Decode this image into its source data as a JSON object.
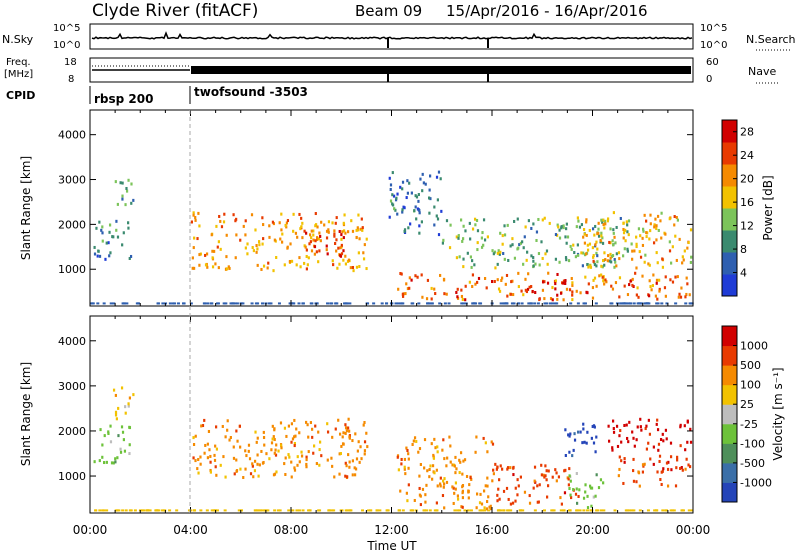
{
  "header": {
    "title": "Clyde River (fitACF)",
    "beam": "Beam 09",
    "date_range": "15/Apr/2016 - 16/Apr/2016"
  },
  "strip_labels": {
    "nsky": "N.Sky",
    "nsearch": "N.Search",
    "nsky_ticks": [
      "10^5",
      "10^0"
    ],
    "nsearch_ticks": [
      "10^5",
      "10^0"
    ],
    "freq": "Freq.",
    "freq_unit": "[MHz]",
    "freq_ticks": [
      "18",
      "8"
    ],
    "nave": "Nave",
    "nave_ticks": [
      "60",
      "0"
    ],
    "cpid": "CPID",
    "cpid_programs": [
      "rbsp 200",
      "twofsound -3503"
    ]
  },
  "chart_data": [
    {
      "type": "heatmap",
      "panel": "power",
      "xlabel": "",
      "ylabel": "Slant Range [km]",
      "x_ticks": [
        "00:00",
        "04:00",
        "08:00",
        "12:00",
        "16:00",
        "20:00",
        "00:00"
      ],
      "x_range_hours": [
        0,
        24
      ],
      "y_ticks": [
        "1000",
        "2000",
        "3000",
        "4000"
      ],
      "ylim": [
        180,
        4550
      ],
      "colorbar": {
        "label": "Power [dB]",
        "ticks": [
          "4",
          "8",
          "12",
          "16",
          "20",
          "24",
          "28"
        ],
        "range": [
          0,
          30
        ],
        "colors": [
          "#1f3cd6",
          "#2e5fb0",
          "#3a8a6f",
          "#7cc45a",
          "#f2c200",
          "#f58a00",
          "#e83a00",
          "#d10000"
        ]
      },
      "regions": [
        {
          "t": [
            0.1,
            1.6
          ],
          "r": [
            1250,
            2150
          ],
          "level": 8
        },
        {
          "t": [
            0.9,
            1.7
          ],
          "r": [
            2300,
            3050
          ],
          "level": 9
        },
        {
          "t": [
            4.0,
            11.0
          ],
          "r": [
            1000,
            2300
          ],
          "level": 20
        },
        {
          "t": [
            8.5,
            10.2
          ],
          "r": [
            1300,
            1900
          ],
          "level": 26
        },
        {
          "t": [
            12.2,
            23.9
          ],
          "r": [
            350,
            950
          ],
          "level": 22
        },
        {
          "t": [
            14.0,
            21.5
          ],
          "r": [
            1050,
            2200
          ],
          "level": 12
        },
        {
          "t": [
            19.5,
            23.9
          ],
          "r": [
            1050,
            2300
          ],
          "level": 18
        },
        {
          "t": [
            11.8,
            14.0
          ],
          "r": [
            1800,
            3200
          ],
          "level": 7
        },
        {
          "t": [
            17.0,
            19.0
          ],
          "r": [
            350,
            800
          ],
          "level": 27
        }
      ]
    },
    {
      "type": "heatmap",
      "panel": "velocity",
      "xlabel": "Time UT",
      "ylabel": "Slant Range [km]",
      "x_ticks": [
        "00:00",
        "04:00",
        "08:00",
        "12:00",
        "16:00",
        "20:00",
        "00:00"
      ],
      "x_range_hours": [
        0,
        24
      ],
      "y_ticks": [
        "1000",
        "2000",
        "3000",
        "4000"
      ],
      "ylim": [
        180,
        4550
      ],
      "colorbar": {
        "label": "Velocity [m s⁻¹]",
        "ticks": [
          "1000",
          "500",
          "100",
          "25",
          "-25",
          "-100",
          "-500",
          "-1000"
        ],
        "colors": [
          "#2444b8",
          "#3a6fa8",
          "#4e8f5a",
          "#6dc23a",
          "#bdbdbd",
          "#f2c200",
          "#f58a00",
          "#e83a00",
          "#d10000"
        ]
      },
      "regions": [
        {
          "t": [
            0.1,
            1.6
          ],
          "r": [
            1300,
            2150
          ],
          "level": 3
        },
        {
          "t": [
            0.9,
            1.7
          ],
          "r": [
            2300,
            3050
          ],
          "level": 5
        },
        {
          "t": [
            4.0,
            11.0
          ],
          "r": [
            1000,
            2300
          ],
          "level": 6
        },
        {
          "t": [
            12.2,
            16.0
          ],
          "r": [
            300,
            1900
          ],
          "level": 6
        },
        {
          "t": [
            16.0,
            19.5
          ],
          "r": [
            400,
            1300
          ],
          "level": 7
        },
        {
          "t": [
            19.0,
            20.4
          ],
          "r": [
            300,
            1100
          ],
          "level": 3
        },
        {
          "t": [
            18.8,
            20.3
          ],
          "r": [
            1450,
            2200
          ],
          "level": 0
        },
        {
          "t": [
            20.5,
            23.9
          ],
          "r": [
            1600,
            2300
          ],
          "level": 8
        },
        {
          "t": [
            21.0,
            23.9
          ],
          "r": [
            800,
            1500
          ],
          "level": 7
        }
      ]
    }
  ]
}
